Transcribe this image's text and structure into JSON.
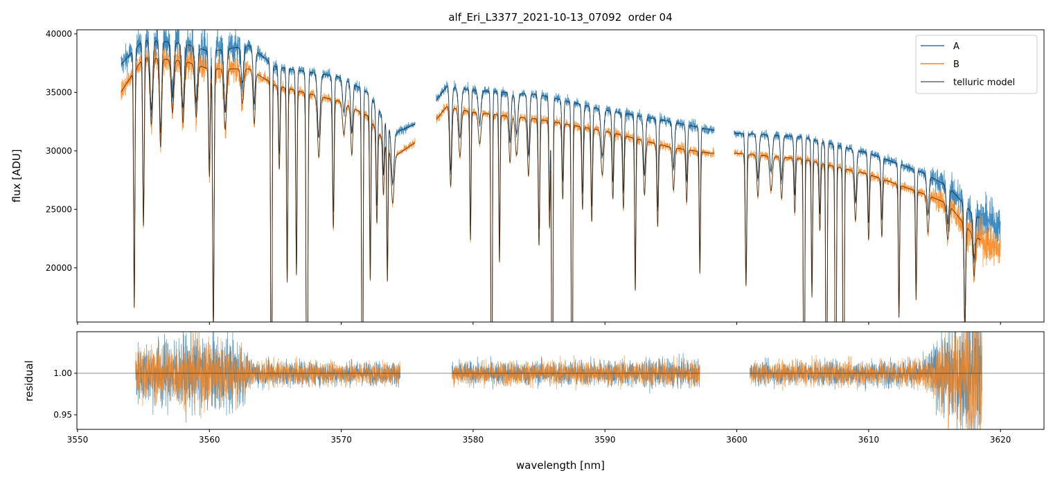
{
  "chart_data": [
    {
      "type": "line",
      "title": "alf_Eri_L3377_2021-10-13_07092  order 04",
      "xlabel": "",
      "ylabel": "flux [ADU]",
      "xlim": [
        3549.95,
        3623.3
      ],
      "ylim": [
        15370,
        40350
      ],
      "yticks": [
        20000,
        25000,
        30000,
        35000,
        40000
      ],
      "ytick_labels": [
        "20000",
        "25000",
        "30000",
        "35000",
        "40000"
      ],
      "xticks": [
        3550,
        3560,
        3570,
        3580,
        3590,
        3600,
        3610,
        3620
      ],
      "grid": false,
      "legend": {
        "placement": "top-right",
        "entries": [
          "A",
          "B",
          "telluric model"
        ]
      },
      "colors": {
        "A": "#1f77b4",
        "B": "#ff7f0e",
        "model": "#000000"
      },
      "segments_nm": [
        [
          3553.3,
          3575.6
        ],
        [
          3577.2,
          3598.3
        ],
        [
          3599.8,
          3620.0
        ]
      ],
      "continuum": {
        "wavelength": [
          3553,
          3555,
          3558,
          3560,
          3563,
          3565,
          3570,
          3572,
          3574,
          3576,
          3578,
          3580,
          3585,
          3590,
          3595,
          3598,
          3600,
          3605,
          3610,
          3614,
          3616,
          3618,
          3620
        ],
        "A": [
          37000,
          39500,
          39200,
          38500,
          39000,
          37200,
          36300,
          35000,
          31500,
          32500,
          35500,
          35200,
          34800,
          33500,
          32500,
          31800,
          31500,
          31200,
          29800,
          28200,
          27000,
          24500,
          23500
        ],
        "B": [
          34500,
          38000,
          37700,
          37000,
          37000,
          35600,
          34200,
          33000,
          29500,
          31000,
          33800,
          33300,
          32700,
          31700,
          30300,
          29800,
          29800,
          29300,
          28000,
          26400,
          25500,
          22700,
          21500
        ]
      },
      "absorption_lines": [
        [
          3554.3,
          0.55,
          0.05
        ],
        [
          3555.0,
          0.38,
          0.06
        ],
        [
          3555.6,
          0.15,
          0.1
        ],
        [
          3556.3,
          0.2,
          0.08
        ],
        [
          3557.2,
          0.12,
          0.1
        ],
        [
          3558.0,
          0.14,
          0.1
        ],
        [
          3559.0,
          0.12,
          0.1
        ],
        [
          3560.0,
          0.25,
          0.06
        ],
        [
          3560.3,
          0.6,
          0.06
        ],
        [
          3561.2,
          0.14,
          0.1
        ],
        [
          3562.5,
          0.08,
          0.1
        ],
        [
          3563.4,
          0.12,
          0.08
        ],
        [
          3564.7,
          1.0,
          0.05
        ],
        [
          3565.3,
          0.2,
          0.06
        ],
        [
          3565.9,
          0.47,
          0.05
        ],
        [
          3566.6,
          0.45,
          0.05
        ],
        [
          3567.4,
          1.0,
          0.06
        ],
        [
          3568.3,
          0.15,
          0.1
        ],
        [
          3569.4,
          0.32,
          0.06
        ],
        [
          3570.2,
          0.08,
          0.1
        ],
        [
          3570.8,
          0.12,
          0.08
        ],
        [
          3571.6,
          1.0,
          0.05
        ],
        [
          3572.2,
          0.42,
          0.05
        ],
        [
          3572.7,
          0.25,
          0.06
        ],
        [
          3573.2,
          0.15,
          0.06
        ],
        [
          3573.5,
          0.38,
          0.05
        ],
        [
          3573.9,
          0.14,
          0.1
        ],
        [
          3578.3,
          0.2,
          0.08
        ],
        [
          3579.0,
          0.12,
          0.1
        ],
        [
          3579.8,
          0.33,
          0.05
        ],
        [
          3580.5,
          0.08,
          0.1
        ],
        [
          3581.4,
          1.0,
          0.05
        ],
        [
          3582.0,
          0.38,
          0.05
        ],
        [
          3582.8,
          0.12,
          0.08
        ],
        [
          3583.3,
          0.1,
          0.1
        ],
        [
          3584.2,
          0.15,
          0.08
        ],
        [
          3585.0,
          0.33,
          0.06
        ],
        [
          3585.8,
          0.28,
          0.05
        ],
        [
          3586.0,
          1.0,
          0.05
        ],
        [
          3586.8,
          0.2,
          0.06
        ],
        [
          3587.5,
          1.0,
          0.05
        ],
        [
          3588.3,
          0.22,
          0.06
        ],
        [
          3589.0,
          0.25,
          0.06
        ],
        [
          3589.8,
          0.12,
          0.1
        ],
        [
          3590.6,
          0.18,
          0.06
        ],
        [
          3591.4,
          0.2,
          0.06
        ],
        [
          3592.3,
          0.42,
          0.05
        ],
        [
          3593.0,
          0.15,
          0.08
        ],
        [
          3594.0,
          0.23,
          0.06
        ],
        [
          3595.2,
          0.12,
          0.08
        ],
        [
          3596.2,
          0.15,
          0.06
        ],
        [
          3597.2,
          0.35,
          0.05
        ],
        [
          3600.7,
          0.38,
          0.06
        ],
        [
          3601.6,
          0.12,
          0.08
        ],
        [
          3602.6,
          0.1,
          0.1
        ],
        [
          3603.4,
          0.12,
          0.08
        ],
        [
          3604.4,
          0.16,
          0.06
        ],
        [
          3605.1,
          1.0,
          0.05
        ],
        [
          3605.7,
          0.4,
          0.05
        ],
        [
          3606.3,
          0.2,
          0.06
        ],
        [
          3606.8,
          1.0,
          0.05
        ],
        [
          3607.5,
          1.0,
          0.05
        ],
        [
          3608.1,
          1.0,
          0.05
        ],
        [
          3609.0,
          0.15,
          0.08
        ],
        [
          3610.0,
          0.2,
          0.06
        ],
        [
          3611.0,
          0.18,
          0.06
        ],
        [
          3612.3,
          0.42,
          0.05
        ],
        [
          3613.6,
          0.35,
          0.05
        ],
        [
          3614.5,
          0.12,
          0.08
        ],
        [
          3616.0,
          0.12,
          0.1
        ],
        [
          3617.3,
          0.4,
          0.06
        ],
        [
          3618.0,
          0.15,
          0.08
        ]
      ]
    },
    {
      "type": "line",
      "xlabel": "wavelength [nm]",
      "ylabel": "residual",
      "xlim": [
        3549.95,
        3623.3
      ],
      "ylim": [
        0.9325,
        1.05
      ],
      "yticks": [
        0.95,
        1.0
      ],
      "ytick_labels": [
        "0.95",
        "1.00"
      ],
      "xticks": [
        3550,
        3560,
        3570,
        3580,
        3590,
        3600,
        3610,
        3620
      ],
      "xtick_labels": [
        "3550",
        "3560",
        "3570",
        "3580",
        "3590",
        "3600",
        "3610",
        "3620"
      ],
      "reference_line": 1.0,
      "segments_nm": [
        [
          3554.4,
          3574.5
        ],
        [
          3578.4,
          3597.2
        ],
        [
          3601.0,
          3618.6
        ]
      ],
      "noise_rms": {
        "wavelength": [
          3554.4,
          3556,
          3560,
          3562.5,
          3563,
          3570,
          3574.5,
          3578.4,
          3597.2,
          3601,
          3614,
          3616,
          3618.6
        ],
        "A": [
          0.025,
          0.03,
          0.035,
          0.03,
          0.012,
          0.01,
          0.01,
          0.01,
          0.012,
          0.01,
          0.012,
          0.04,
          0.06
        ],
        "B": [
          0.02,
          0.025,
          0.03,
          0.025,
          0.012,
          0.01,
          0.01,
          0.01,
          0.012,
          0.01,
          0.012,
          0.04,
          0.06
        ]
      }
    }
  ]
}
